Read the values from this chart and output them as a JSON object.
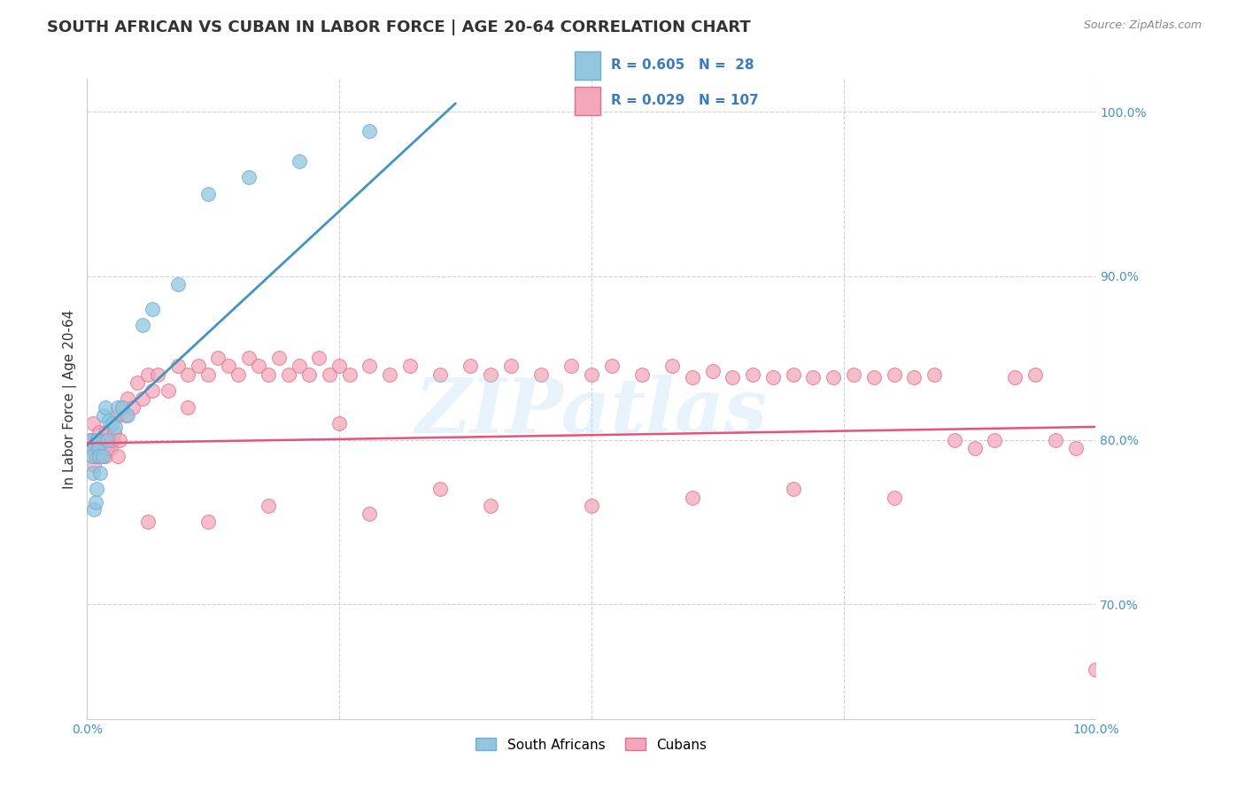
{
  "title": "SOUTH AFRICAN VS CUBAN IN LABOR FORCE | AGE 20-64 CORRELATION CHART",
  "source": "Source: ZipAtlas.com",
  "ylabel": "In Labor Force | Age 20-64",
  "xlim": [
    0.0,
    1.0
  ],
  "ylim": [
    0.63,
    1.02
  ],
  "xticks": [
    0.0,
    0.25,
    0.5,
    0.75,
    1.0
  ],
  "ytick_positions": [
    0.7,
    0.8,
    0.9,
    1.0
  ],
  "ytick_labels": [
    "70.0%",
    "80.0%",
    "90.0%",
    "100.0%"
  ],
  "background_color": "#ffffff",
  "grid_color": "#cccccc",
  "blue_color": "#92c5de",
  "blue_edge_color": "#6baed6",
  "pink_color": "#f4a7b9",
  "pink_edge_color": "#e07090",
  "blue_line_color": "#4393c3",
  "pink_line_color": "#e8527a",
  "watermark": "ZIPatlas",
  "sa_x": [
    0.003,
    0.004,
    0.005,
    0.006,
    0.007,
    0.008,
    0.009,
    0.01,
    0.011,
    0.012,
    0.013,
    0.015,
    0.016,
    0.018,
    0.02,
    0.022,
    0.025,
    0.028,
    0.03,
    0.035,
    0.04,
    0.055,
    0.065,
    0.09,
    0.12,
    0.16,
    0.21,
    0.28
  ],
  "sa_y": [
    0.8,
    0.795,
    0.79,
    0.78,
    0.758,
    0.762,
    0.77,
    0.8,
    0.795,
    0.79,
    0.78,
    0.79,
    0.815,
    0.82,
    0.8,
    0.812,
    0.81,
    0.808,
    0.82,
    0.82,
    0.815,
    0.87,
    0.88,
    0.895,
    0.95,
    0.96,
    0.97,
    0.988
  ],
  "cuba_x": [
    0.003,
    0.004,
    0.005,
    0.006,
    0.007,
    0.007,
    0.008,
    0.008,
    0.009,
    0.009,
    0.01,
    0.01,
    0.011,
    0.012,
    0.012,
    0.013,
    0.014,
    0.015,
    0.015,
    0.016,
    0.017,
    0.018,
    0.018,
    0.019,
    0.02,
    0.021,
    0.022,
    0.023,
    0.025,
    0.027,
    0.03,
    0.032,
    0.035,
    0.038,
    0.04,
    0.045,
    0.05,
    0.055,
    0.06,
    0.065,
    0.07,
    0.08,
    0.09,
    0.1,
    0.11,
    0.12,
    0.13,
    0.14,
    0.15,
    0.16,
    0.17,
    0.18,
    0.19,
    0.2,
    0.21,
    0.22,
    0.23,
    0.24,
    0.25,
    0.26,
    0.28,
    0.3,
    0.32,
    0.35,
    0.38,
    0.4,
    0.42,
    0.45,
    0.48,
    0.5,
    0.52,
    0.55,
    0.58,
    0.6,
    0.62,
    0.64,
    0.66,
    0.68,
    0.7,
    0.72,
    0.74,
    0.76,
    0.78,
    0.8,
    0.82,
    0.84,
    0.86,
    0.88,
    0.9,
    0.92,
    0.94,
    0.96,
    0.98,
    1.0,
    0.03,
    0.06,
    0.12,
    0.18,
    0.28,
    0.35,
    0.4,
    0.5,
    0.6,
    0.7,
    0.8,
    0.1,
    0.25
  ],
  "cuba_y": [
    0.8,
    0.795,
    0.8,
    0.81,
    0.795,
    0.785,
    0.8,
    0.79,
    0.8,
    0.79,
    0.8,
    0.795,
    0.8,
    0.805,
    0.79,
    0.8,
    0.795,
    0.8,
    0.79,
    0.8,
    0.795,
    0.805,
    0.79,
    0.8,
    0.795,
    0.805,
    0.8,
    0.795,
    0.8,
    0.805,
    0.815,
    0.8,
    0.82,
    0.815,
    0.825,
    0.82,
    0.835,
    0.825,
    0.84,
    0.83,
    0.84,
    0.83,
    0.845,
    0.84,
    0.845,
    0.84,
    0.85,
    0.845,
    0.84,
    0.85,
    0.845,
    0.84,
    0.85,
    0.84,
    0.845,
    0.84,
    0.85,
    0.84,
    0.845,
    0.84,
    0.845,
    0.84,
    0.845,
    0.84,
    0.845,
    0.84,
    0.845,
    0.84,
    0.845,
    0.84,
    0.845,
    0.84,
    0.845,
    0.838,
    0.842,
    0.838,
    0.84,
    0.838,
    0.84,
    0.838,
    0.838,
    0.84,
    0.838,
    0.84,
    0.838,
    0.84,
    0.8,
    0.795,
    0.8,
    0.838,
    0.84,
    0.8,
    0.795,
    0.66,
    0.79,
    0.75,
    0.75,
    0.76,
    0.755,
    0.77,
    0.76,
    0.76,
    0.765,
    0.77,
    0.765,
    0.82,
    0.81
  ],
  "blue_line_x": [
    0.0,
    0.365
  ],
  "blue_line_y": [
    0.797,
    1.005
  ],
  "pink_line_x": [
    0.0,
    1.0
  ],
  "pink_line_y": [
    0.798,
    0.808
  ],
  "legend_items": [
    {
      "label": "R = 0.605   N =  28",
      "color": "#92c5de",
      "edge": "#6baed6"
    },
    {
      "label": "R = 0.029   N = 107",
      "color": "#f4a7b9",
      "edge": "#e07090"
    }
  ],
  "bottom_legend": [
    {
      "label": "South Africans",
      "color": "#92c5de"
    },
    {
      "label": "Cubans",
      "color": "#f4a7b9"
    }
  ]
}
